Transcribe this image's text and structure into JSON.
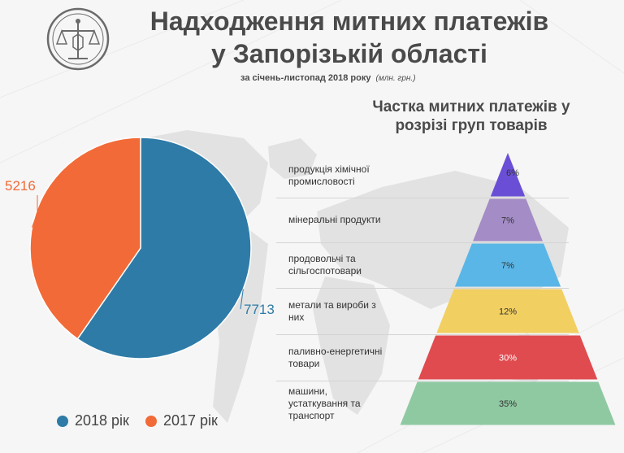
{
  "header": {
    "title_line1": "Надходження митних платежів",
    "title_line2": "у Запорізькій області",
    "subtitle": "за січень-листопад 2018 року",
    "subtitle_note": "(млн. грн.)"
  },
  "colors": {
    "blue": "#2e7ba7",
    "orange": "#f26a37",
    "purple": "#6a4fd6",
    "lavender": "#a48cc6",
    "sky": "#5ab6e6",
    "yellow": "#f1cf61",
    "red": "#e04b4f",
    "green": "#8fc9a2"
  },
  "chart_data": [
    {
      "type": "pie",
      "series": [
        {
          "name": "2018 рік",
          "value": 7713,
          "label": "7713",
          "color": "#2e7ba7"
        },
        {
          "name": "2017 рік",
          "value": 5216,
          "label": "5216",
          "color": "#f26a37"
        }
      ],
      "legend_position": "bottom"
    },
    {
      "type": "bar",
      "title_line1": "Частка митних платежів у",
      "title_line2": "розрізі груп товарів",
      "categories": [
        "продукція хімічної промисловості",
        "мінеральні продукти",
        "продовольчі та сільгоспотовари",
        "метали та вироби з них",
        "паливно-енергетичні товари",
        "машини, устаткування та транспорт"
      ],
      "label_lines": [
        [
          "продукція хімічної",
          "промисловості"
        ],
        [
          "мінеральні продукти"
        ],
        [
          "продовольчі та",
          "сільгоспотовари"
        ],
        [
          "метали та вироби з",
          "них"
        ],
        [
          "паливно-енергетичні",
          "товари"
        ],
        [
          "машини,",
          "устаткування та",
          "транспорт"
        ]
      ],
      "values": [
        6,
        7,
        7,
        12,
        30,
        35
      ],
      "value_labels": [
        "6%",
        "7%",
        "7%",
        "12%",
        "30%",
        "35%"
      ],
      "colors": [
        "#6a4fd6",
        "#a48cc6",
        "#5ab6e6",
        "#f1cf61",
        "#e04b4f",
        "#8fc9a2"
      ]
    }
  ]
}
